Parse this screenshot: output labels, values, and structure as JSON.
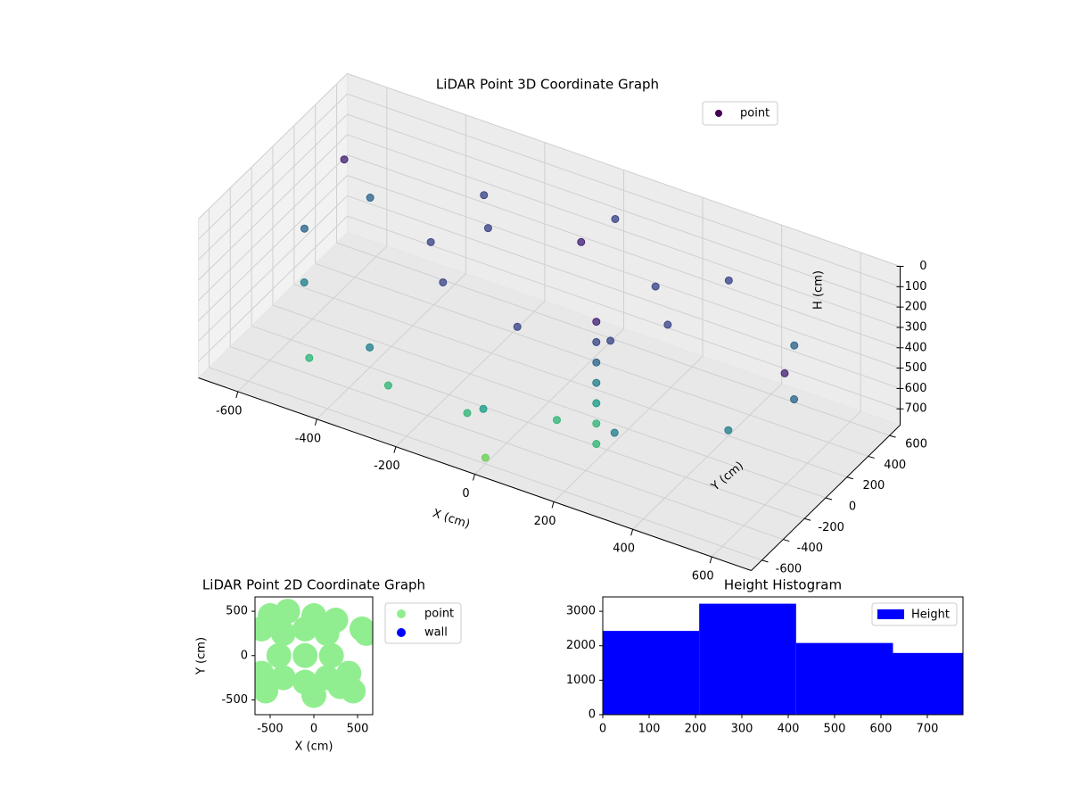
{
  "chart_data": [
    {
      "type": "scatter3d",
      "title": "LiDAR Point 3D Coordinate Graph",
      "xlabel": "X (cm)",
      "ylabel": "Y (cm)",
      "zlabel": "H (cm)",
      "xlim": [
        -700,
        700
      ],
      "ylim": [
        -700,
        700
      ],
      "zlim": [
        0,
        780
      ],
      "z_inverted": true,
      "xticks": [
        -600,
        -400,
        -200,
        0,
        200,
        400,
        600
      ],
      "yticks": [
        -600,
        -400,
        -200,
        0,
        200,
        400,
        600
      ],
      "zticks": [
        0,
        100,
        200,
        300,
        400,
        500,
        600,
        700
      ],
      "legend": "upper right",
      "colormap": "viridis",
      "series": [
        {
          "name": "point",
          "color": "#440154",
          "x": [
            620,
            537,
            310,
            0,
            -310,
            -537,
            -620,
            -537,
            -310,
            0,
            310,
            537,
            300,
            212,
            0,
            -212,
            -300,
            -212,
            0,
            212,
            200,
            200,
            200,
            200,
            200,
            200,
            200,
            -500,
            -300,
            -100,
            100,
            -600,
            650,
            0
          ],
          "y": [
            0,
            310,
            537,
            620,
            537,
            310,
            0,
            -310,
            -537,
            -620,
            -537,
            -310,
            0,
            212,
            300,
            212,
            0,
            -212,
            -300,
            -212,
            -300,
            -300,
            -300,
            -300,
            -300,
            -300,
            -300,
            -400,
            -400,
            -400,
            -300,
            300,
            -200,
            -600
          ],
          "h": [
            350,
            300,
            250,
            200,
            250,
            300,
            350,
            400,
            450,
            500,
            450,
            400,
            200,
            180,
            150,
            180,
            200,
            230,
            260,
            230,
            100,
            200,
            300,
            400,
            500,
            600,
            700,
            700,
            700,
            700,
            650,
            150,
            100,
            750
          ]
        }
      ]
    },
    {
      "type": "scatter",
      "title": "LiDAR Point 2D Coordinate Graph",
      "xlabel": "X (cm)",
      "ylabel": "Y (cm)",
      "xlim": [
        -673,
        673
      ],
      "ylim": [
        -667,
        662
      ],
      "xticks": [
        -500,
        0,
        500
      ],
      "yticks": [
        -500,
        0,
        500
      ],
      "legend": "outside upper right",
      "series": [
        {
          "name": "point",
          "color": "#90ee90",
          "x": [
            -100,
            200,
            -400,
            -100,
            -100,
            150,
            150,
            -350,
            -350,
            300,
            400,
            -500,
            -550,
            550,
            600,
            -600,
            -600,
            450,
            -300,
            0,
            0,
            250
          ],
          "y": [
            0,
            0,
            0,
            300,
            -300,
            250,
            -250,
            250,
            -250,
            -350,
            -200,
            450,
            -400,
            300,
            250,
            300,
            -200,
            -400,
            500,
            450,
            -450,
            400
          ]
        },
        {
          "name": "wall",
          "color": "#0000ff",
          "x": [],
          "y": []
        }
      ]
    },
    {
      "type": "histogram",
      "title": "Height Histogram",
      "bins": [
        0,
        208,
        417,
        626,
        835
      ],
      "xlim": [
        0,
        777
      ],
      "ylim": [
        0,
        3417
      ],
      "xticks": [
        0,
        100,
        200,
        300,
        400,
        500,
        600,
        700
      ],
      "yticks": [
        0,
        1000,
        2000,
        3000
      ],
      "legend": "upper right",
      "series": [
        {
          "name": "Height",
          "color": "#0000ff",
          "values": [
            2430,
            3220,
            2080,
            1790
          ]
        }
      ]
    }
  ]
}
